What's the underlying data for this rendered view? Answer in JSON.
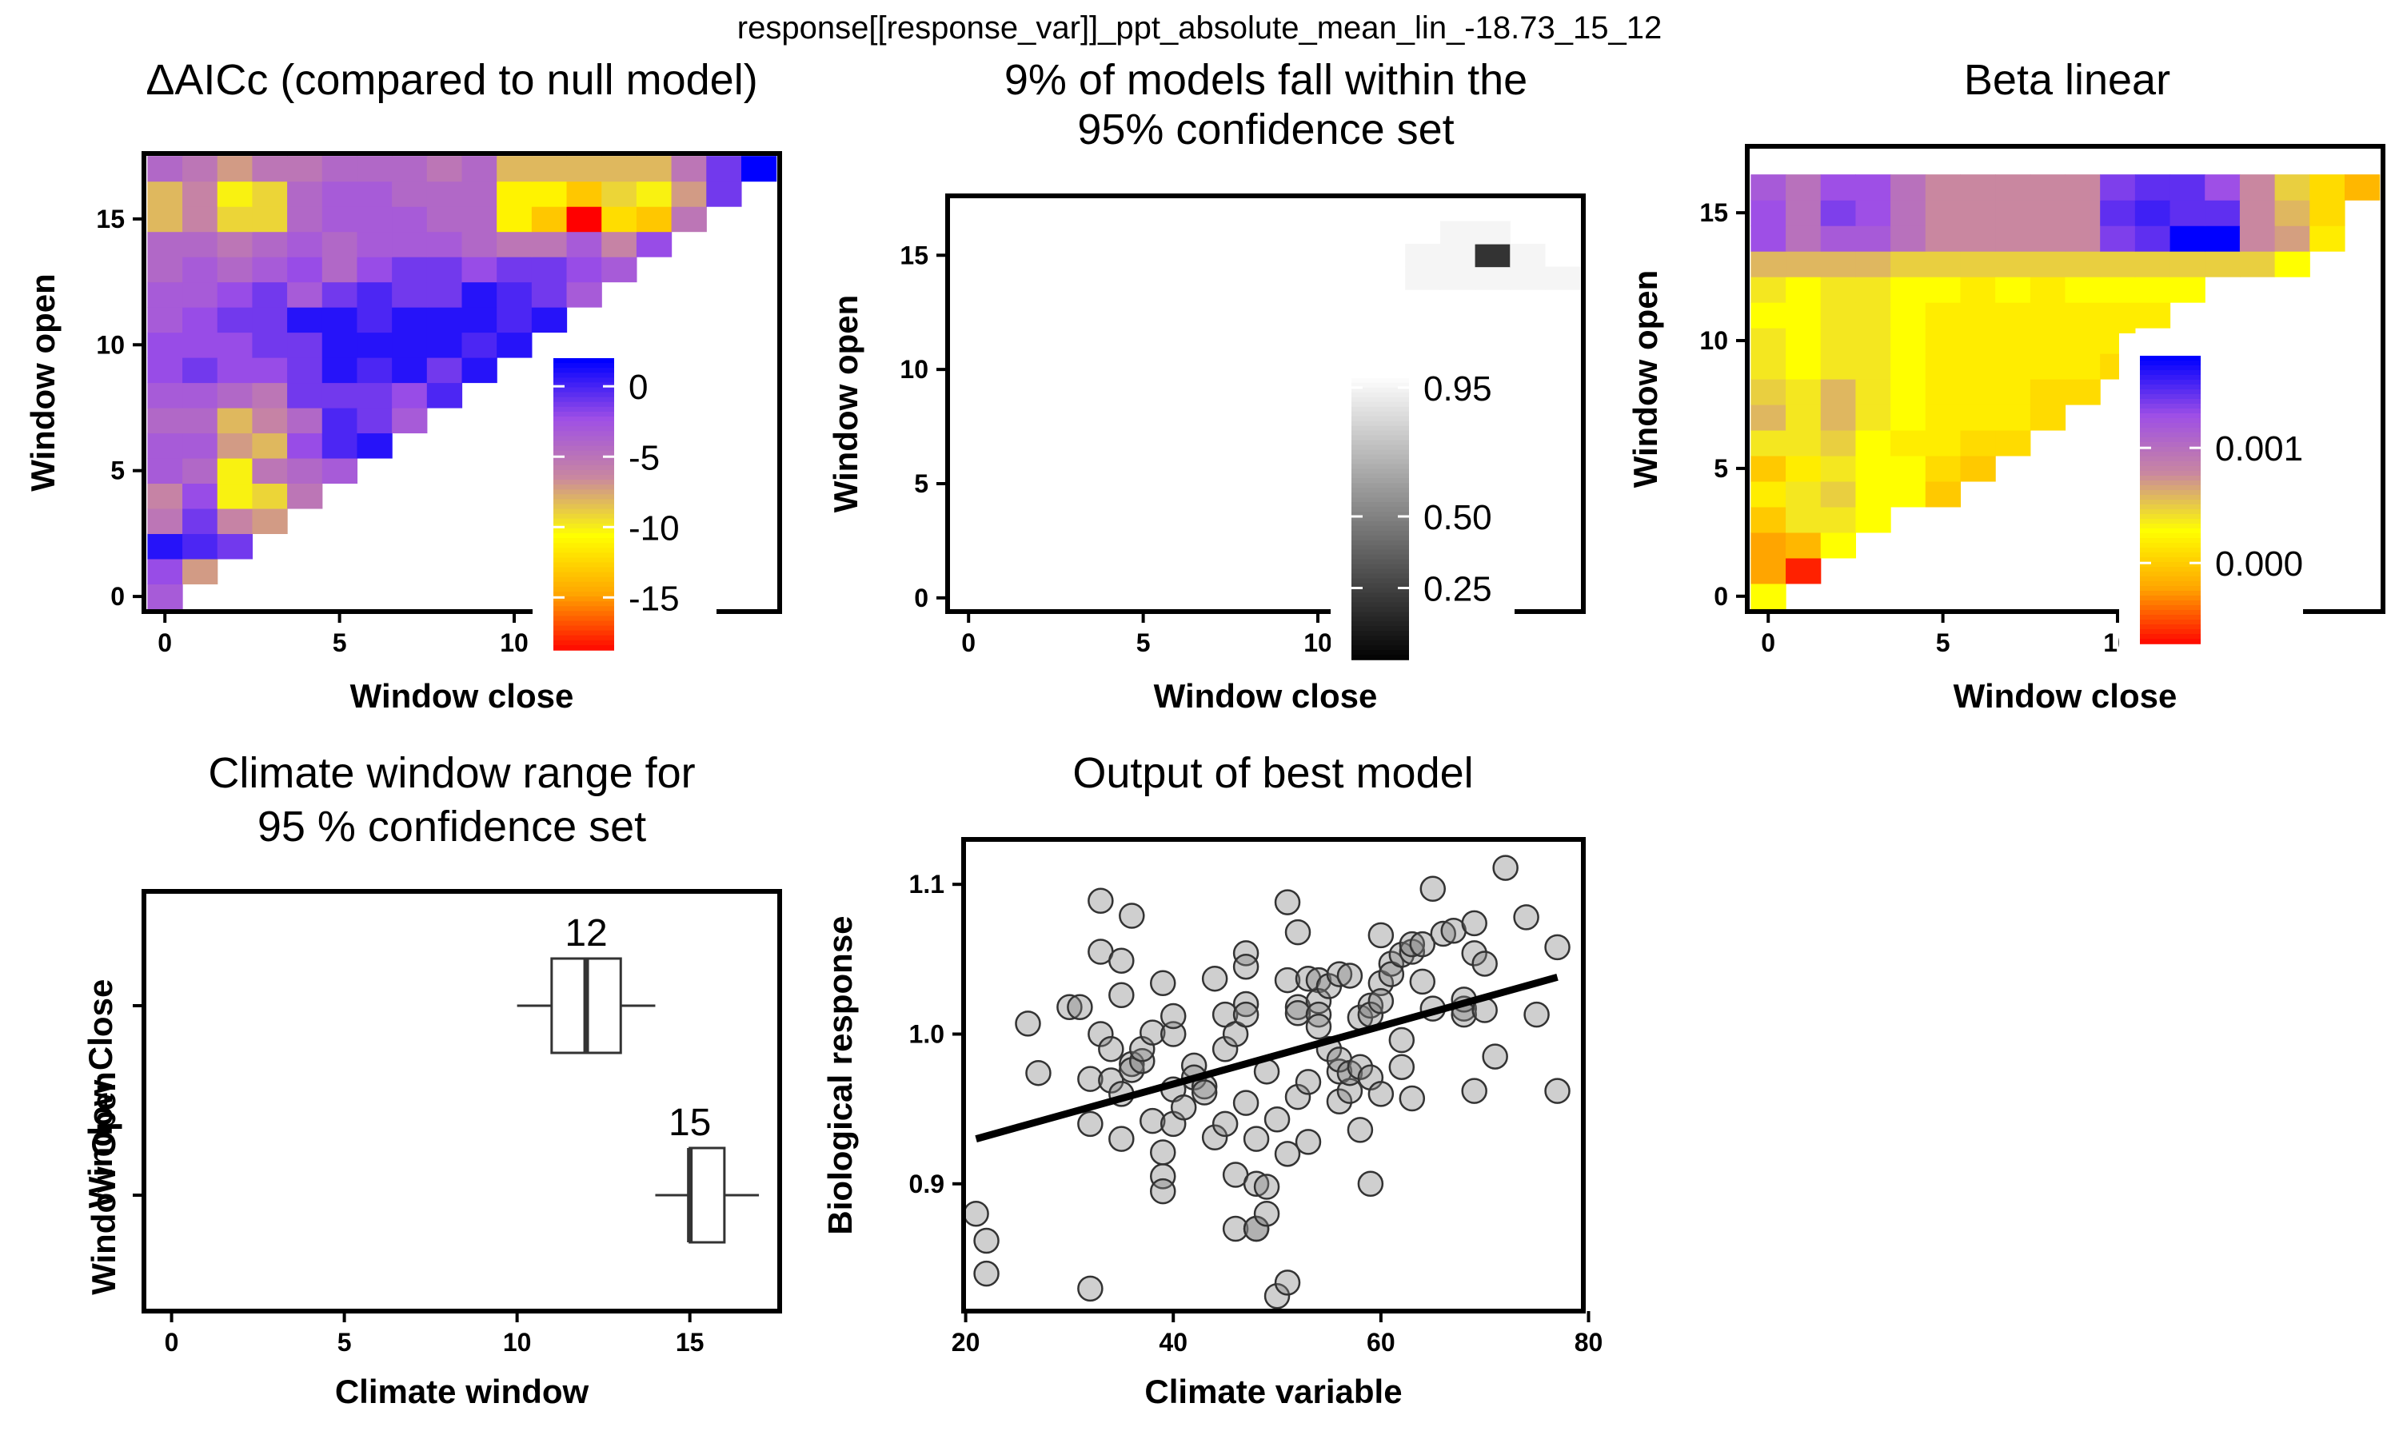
{
  "figure": {
    "suptitle": "response[[response_var]]_ppt_absolute_mean_lin_-18.73_15_12"
  },
  "chart_data": [
    {
      "id": "deltaaicc",
      "type": "heatmap",
      "title": "ΔAICc (compared to null model)",
      "xlabel": "Window close",
      "ylabel": "Window open",
      "xlim": [
        -0.6,
        17.6
      ],
      "ylim": [
        -0.6,
        17.6
      ],
      "xticks": [
        0,
        5,
        10
      ],
      "yticks": [
        0,
        5,
        10,
        15
      ],
      "legend": {
        "position": "inside-right",
        "ticks": [
          0,
          -5,
          -10,
          -15
        ],
        "range": [
          -18.73,
          2
        ]
      },
      "gradient": [
        "#ff0000",
        "#ffa500",
        "#ffff00",
        "#c987a0",
        "#9e4fe6",
        "#0000ff"
      ],
      "rows": [
        [
          -3
        ],
        [
          -2,
          -7
        ],
        [
          1,
          0,
          -1
        ],
        [
          -5,
          -1,
          -6,
          -7
        ],
        [
          -6,
          -2,
          -10,
          -9,
          -5
        ],
        [
          -3,
          -4,
          -10,
          -5,
          -4,
          -3
        ],
        [
          -3,
          -3,
          -7,
          -8,
          -2,
          0,
          1
        ],
        [
          -4,
          -4,
          -8,
          -6,
          -4,
          0,
          -1,
          -3
        ],
        [
          -3,
          -3,
          -4,
          -5,
          -1,
          -1,
          -1,
          -2,
          0
        ],
        [
          -2,
          -1,
          -2,
          -2,
          -1,
          1,
          0,
          1,
          -1,
          1
        ],
        [
          -2,
          -2,
          -2,
          -1,
          -1,
          1,
          1,
          1,
          1,
          0,
          1
        ],
        [
          -3,
          -2,
          -1,
          -1,
          1,
          1,
          0,
          1,
          1,
          1,
          0,
          1
        ],
        [
          -3,
          -3,
          -2,
          -1,
          -3,
          -1,
          0,
          -1,
          -1,
          1,
          0,
          -1,
          -3
        ],
        [
          -4,
          -3,
          -4,
          -3,
          -2,
          -4,
          -2,
          -1,
          -1,
          -2,
          -1,
          -1,
          -2,
          -3
        ],
        [
          -4,
          -4,
          -5,
          -4,
          -3,
          -4,
          -3,
          -3,
          -3,
          -4,
          -5,
          -5,
          -3,
          -6,
          -2
        ],
        [
          -8,
          -6,
          -9,
          -9,
          -4,
          -3,
          -3,
          -3,
          -4,
          -4,
          -11,
          -13,
          -18.73,
          -12,
          -13,
          -5
        ],
        [
          -8,
          -6,
          -10,
          -9,
          -4,
          -3,
          -3,
          -4,
          -4,
          -4,
          -11,
          -11,
          -13,
          -9,
          -10,
          -7,
          -1
        ],
        [
          -4,
          -5,
          -7,
          -5,
          -5,
          -4,
          -4,
          -4,
          -5,
          -4,
          -8,
          -8,
          -8,
          -8,
          -8,
          -5,
          -1,
          2
        ]
      ]
    },
    {
      "id": "confset",
      "type": "heatmap",
      "title": [
        "9% of models fall within the",
        "95% confidence set"
      ],
      "xlabel": "Window close",
      "ylabel": "Window open",
      "xlim": [
        -0.6,
        17.6
      ],
      "ylim": [
        -0.6,
        17.6
      ],
      "xticks": [
        0,
        5,
        10
      ],
      "yticks": [
        0,
        5,
        10,
        15
      ],
      "legend": {
        "position": "inside-right",
        "ticks": [
          0.95,
          0.5,
          0.25
        ],
        "range": [
          0,
          1
        ]
      },
      "gradient": [
        "#000000",
        "#ffffff"
      ],
      "cells": [
        {
          "open": 14,
          "close": 13,
          "value": 0.96
        },
        {
          "open": 14,
          "close": 14,
          "value": 0.96
        },
        {
          "open": 14,
          "close": 15,
          "value": 0.96
        },
        {
          "open": 14,
          "close": 16,
          "value": 0.96
        },
        {
          "open": 14,
          "close": 17,
          "value": 0.96
        },
        {
          "open": 15,
          "close": 13,
          "value": 0.96
        },
        {
          "open": 15,
          "close": 14,
          "value": 0.96
        },
        {
          "open": 15,
          "close": 15,
          "value": 0.2
        },
        {
          "open": 15,
          "close": 16,
          "value": 0.96
        },
        {
          "open": 16,
          "close": 14,
          "value": 0.96
        },
        {
          "open": 16,
          "close": 15,
          "value": 0.96
        }
      ]
    },
    {
      "id": "beta",
      "type": "heatmap",
      "title": "Beta linear",
      "xlabel": "Window close",
      "ylabel": "Window open",
      "xlim": [
        -0.6,
        17.6
      ],
      "ylim": [
        -0.6,
        17.6
      ],
      "xticks": [
        0,
        5,
        10
      ],
      "yticks": [
        0,
        5,
        10,
        15
      ],
      "legend": {
        "position": "inside-right",
        "ticks": [
          0.001,
          0.0
        ],
        "range": [
          -0.0007,
          0.0018
        ]
      },
      "gradient": [
        "#ff0000",
        "#ffa500",
        "#ffff00",
        "#c987a0",
        "#9e4fe6",
        "#0000ff"
      ],
      "rows": [
        [
          0.0003
        ],
        [
          -0.0002,
          -0.0006
        ],
        [
          -0.0002,
          -0.0001,
          0.0003
        ],
        [
          0.0,
          0.0004,
          0.0004,
          0.0003
        ],
        [
          0.0002,
          0.0004,
          0.0005,
          0.0003,
          0.0003,
          0.0
        ],
        [
          0.0,
          0.0002,
          0.0004,
          0.0003,
          0.0003,
          0.0001,
          0.0
        ],
        [
          0.0004,
          0.0004,
          0.0005,
          0.0003,
          0.0002,
          0.0002,
          0.0001,
          0.0001
        ],
        [
          0.0006,
          0.0004,
          0.0006,
          0.0004,
          0.0003,
          0.0002,
          0.0002,
          0.0002,
          0.0001
        ],
        [
          0.0005,
          0.0004,
          0.0006,
          0.0004,
          0.0003,
          0.0002,
          0.0002,
          0.0002,
          0.0001,
          0.0001
        ],
        [
          0.0004,
          0.0003,
          0.0004,
          0.0004,
          0.0003,
          0.0002,
          0.0002,
          0.0002,
          0.0002,
          0.0002,
          0.0001
        ],
        [
          0.0004,
          0.0003,
          0.0004,
          0.0004,
          0.0003,
          0.0002,
          0.0002,
          0.0002,
          0.0002,
          0.0002,
          0.0002
        ],
        [
          0.0003,
          0.0003,
          0.0004,
          0.0004,
          0.0003,
          0.0002,
          0.0002,
          0.0002,
          0.0002,
          0.0002,
          0.0002,
          0.0002
        ],
        [
          0.0004,
          0.0003,
          0.0004,
          0.0004,
          0.0003,
          0.0003,
          0.0002,
          0.0003,
          0.0002,
          0.0003,
          0.0003,
          0.0003,
          0.0003
        ],
        [
          0.0006,
          0.0006,
          0.0006,
          0.0006,
          0.0005,
          0.0005,
          0.0005,
          0.0005,
          0.0005,
          0.0005,
          0.0005,
          0.0005,
          0.0005,
          0.0005,
          0.0005,
          0.0003
        ],
        [
          0.0013,
          0.001,
          0.0012,
          0.0012,
          0.001,
          0.0008,
          0.0008,
          0.0008,
          0.0008,
          0.0008,
          0.0014,
          0.0015,
          0.0018,
          0.0018,
          0.0008,
          0.0007,
          0.0002
        ],
        [
          0.0013,
          0.001,
          0.0014,
          0.0013,
          0.001,
          0.0008,
          0.0008,
          0.0008,
          0.0008,
          0.0008,
          0.0015,
          0.0016,
          0.0015,
          0.0015,
          0.0008,
          0.0006,
          0.0001
        ],
        [
          0.0012,
          0.001,
          0.0013,
          0.0013,
          0.001,
          0.0008,
          0.0008,
          0.0008,
          0.0008,
          0.0008,
          0.0014,
          0.0015,
          0.0015,
          0.0013,
          0.0008,
          0.0005,
          0.0001,
          -0.0001
        ]
      ]
    },
    {
      "id": "windowrange",
      "type": "boxplot",
      "title": [
        "Climate window range for",
        "95 % confidence set"
      ],
      "xlabel": "Climate window",
      "ylabel": [
        "Window Open",
        "Window Close"
      ],
      "xlim": [
        -0.8,
        17.6
      ],
      "xticks": [
        0,
        5,
        10,
        15
      ],
      "boxes": [
        {
          "label": "Window Close",
          "min": 10,
          "q1": 11,
          "median": 12,
          "q3": 13,
          "max": 14,
          "annotation": "12"
        },
        {
          "label": "Window Open",
          "min": 14,
          "q1": 15,
          "median": 15,
          "q3": 16,
          "max": 17,
          "annotation": "15"
        }
      ]
    },
    {
      "id": "bestmodel",
      "type": "scatter",
      "title": "Output of best model",
      "xlabel": "Climate variable",
      "ylabel": "Biological response",
      "xlim": [
        19.8,
        79.5
      ],
      "ylim": [
        0.815,
        1.13
      ],
      "xticks": [
        20,
        40,
        60,
        80
      ],
      "yticks": [
        0.9,
        1.0,
        1.1
      ],
      "fit": {
        "x": [
          21,
          77
        ],
        "y": [
          0.93,
          1.038
        ]
      },
      "points": [
        [
          21,
          0.88
        ],
        [
          22,
          0.862
        ],
        [
          22,
          0.84
        ],
        [
          26,
          1.007
        ],
        [
          27,
          0.974
        ],
        [
          30,
          1.018
        ],
        [
          31,
          1.018
        ],
        [
          32,
          0.94
        ],
        [
          32,
          0.83
        ],
        [
          32,
          0.97
        ],
        [
          33,
          1.055
        ],
        [
          33,
          1.089
        ],
        [
          33,
          1.0
        ],
        [
          34,
          0.99
        ],
        [
          34,
          0.969
        ],
        [
          35,
          1.026
        ],
        [
          35,
          0.96
        ],
        [
          35,
          0.93
        ],
        [
          35,
          1.049
        ],
        [
          36,
          0.98
        ],
        [
          36,
          1.079
        ],
        [
          36,
          0.976
        ],
        [
          37,
          0.982
        ],
        [
          37,
          0.99
        ],
        [
          38,
          1.001
        ],
        [
          38,
          0.942
        ],
        [
          39,
          1.034
        ],
        [
          39,
          0.921
        ],
        [
          39,
          0.905
        ],
        [
          39,
          0.895
        ],
        [
          40,
          1.0
        ],
        [
          40,
          1.012
        ],
        [
          40,
          0.94
        ],
        [
          40,
          0.963
        ],
        [
          41,
          0.951
        ],
        [
          42,
          0.979
        ],
        [
          42,
          0.971
        ],
        [
          43,
          0.965
        ],
        [
          43,
          0.961
        ],
        [
          44,
          1.037
        ],
        [
          44,
          0.931
        ],
        [
          45,
          0.94
        ],
        [
          45,
          0.99
        ],
        [
          45,
          1.013
        ],
        [
          46,
          1.0
        ],
        [
          46,
          0.87
        ],
        [
          46,
          0.906
        ],
        [
          47,
          1.054
        ],
        [
          47,
          1.045
        ],
        [
          47,
          1.02
        ],
        [
          47,
          0.954
        ],
        [
          47,
          1.013
        ],
        [
          48,
          0.9
        ],
        [
          48,
          0.87
        ],
        [
          48,
          0.87
        ],
        [
          48,
          0.93
        ],
        [
          49,
          0.975
        ],
        [
          49,
          0.88
        ],
        [
          49,
          0.898
        ],
        [
          50,
          0.943
        ],
        [
          50,
          0.825
        ],
        [
          51,
          1.088
        ],
        [
          51,
          1.036
        ],
        [
          51,
          0.92
        ],
        [
          51,
          0.834
        ],
        [
          52,
          1.068
        ],
        [
          52,
          1.018
        ],
        [
          52,
          0.958
        ],
        [
          52,
          1.014
        ],
        [
          53,
          1.037
        ],
        [
          53,
          0.968
        ],
        [
          53,
          0.928
        ],
        [
          54,
          1.036
        ],
        [
          54,
          1.022
        ],
        [
          54,
          1.013
        ],
        [
          54,
          1.005
        ],
        [
          55,
          0.99
        ],
        [
          55,
          1.032
        ],
        [
          56,
          1.04
        ],
        [
          56,
          0.975
        ],
        [
          56,
          0.983
        ],
        [
          56,
          0.955
        ],
        [
          57,
          0.962
        ],
        [
          57,
          1.039
        ],
        [
          57,
          0.974
        ],
        [
          58,
          0.978
        ],
        [
          58,
          0.936
        ],
        [
          58,
          1.011
        ],
        [
          59,
          1.019
        ],
        [
          59,
          0.971
        ],
        [
          59,
          1.013
        ],
        [
          59,
          0.9
        ],
        [
          60,
          0.96
        ],
        [
          60,
          1.066
        ],
        [
          60,
          1.034
        ],
        [
          60,
          1.022
        ],
        [
          61,
          1.047
        ],
        [
          61,
          1.04
        ],
        [
          62,
          1.053
        ],
        [
          62,
          0.978
        ],
        [
          62,
          0.996
        ],
        [
          63,
          1.055
        ],
        [
          63,
          0.957
        ],
        [
          63,
          1.06
        ],
        [
          64,
          1.06
        ],
        [
          64,
          1.035
        ],
        [
          65,
          1.097
        ],
        [
          65,
          1.017
        ],
        [
          66,
          1.067
        ],
        [
          67,
          1.069
        ],
        [
          68,
          1.017
        ],
        [
          68,
          1.023
        ],
        [
          68,
          1.013
        ],
        [
          69,
          0.962
        ],
        [
          69,
          1.054
        ],
        [
          69,
          1.074
        ],
        [
          70,
          1.047
        ],
        [
          70,
          1.016
        ],
        [
          71,
          0.985
        ],
        [
          72,
          1.111
        ],
        [
          74,
          1.078
        ],
        [
          75,
          1.013
        ],
        [
          77,
          1.058
        ],
        [
          77,
          0.962
        ]
      ]
    }
  ]
}
